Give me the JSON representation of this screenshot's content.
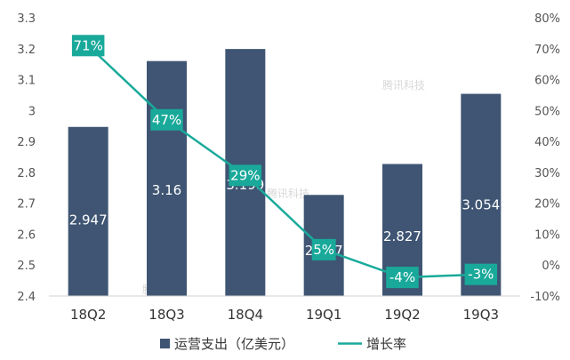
{
  "chart_data": {
    "type": "bar",
    "categories": [
      "18Q2",
      "18Q3",
      "18Q4",
      "19Q1",
      "19Q2",
      "19Q3"
    ],
    "series": [
      {
        "name": "运营支出（亿美元）",
        "type": "bar",
        "axis": "left",
        "values": [
          2.947,
          3.16,
          3.199,
          2.727,
          2.827,
          3.054
        ],
        "labels": [
          "2.947",
          "3.16",
          "3.199",
          "2.727",
          "2.827",
          "3.054"
        ]
      },
      {
        "name": "增长率",
        "type": "line",
        "axis": "right",
        "values": [
          71,
          47,
          29,
          5,
          -4,
          -3
        ],
        "labels": [
          "71%",
          "47%",
          "29%",
          "5%",
          "-4%",
          "-3%"
        ]
      }
    ],
    "y_left": {
      "ylim": [
        2.4,
        3.3
      ],
      "ticks": [
        "2.4",
        "2.5",
        "2.6",
        "2.7",
        "2.8",
        "2.9",
        "3",
        "3.1",
        "3.2",
        "3.3"
      ]
    },
    "y_right": {
      "ylim": [
        -10,
        80
      ],
      "ticks": [
        "-10%",
        "0%",
        "10%",
        "20%",
        "30%",
        "40%",
        "50%",
        "60%",
        "70%",
        "80%"
      ]
    },
    "legend_position": "bottom",
    "grid": false,
    "colors": {
      "bar": "#3f5573",
      "line": "#1aaa9b",
      "label_box": "#19a99a"
    },
    "watermark": "腾讯科技"
  }
}
